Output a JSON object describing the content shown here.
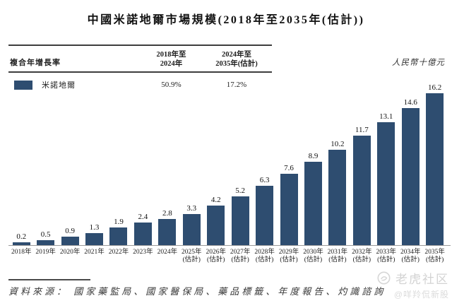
{
  "title": "中國米諾地爾市場規模(2018年至2035年(估計))",
  "unit_label": "人民幣十億元",
  "cagr_table": {
    "row_header": "複合年增長率",
    "columns": [
      [
        "2018年至",
        "2024年"
      ],
      [
        "2024年至",
        "2035年(估計)"
      ]
    ],
    "legend_label": "米諾地爾",
    "legend_color": "#2E4D70",
    "values": [
      "50.9%",
      "17.2%"
    ]
  },
  "chart_data": {
    "type": "bar",
    "title": "中國米諾地爾市場規模(2018年至2035年(估計))",
    "ylabel": "人民幣十億元",
    "categories": [
      "2018年",
      "2019年",
      "2020年",
      "2021年",
      "2022年",
      "2023年",
      "2024年",
      "2025年",
      "2026年",
      "2027年",
      "2028年",
      "2029年",
      "2030年",
      "2031年",
      "2032年",
      "2033年",
      "2034年",
      "2035年"
    ],
    "estimate_note": "(估計)",
    "estimate_from_index": 7,
    "values": [
      0.2,
      0.5,
      0.9,
      1.3,
      1.9,
      2.4,
      2.8,
      3.3,
      4.2,
      5.2,
      6.3,
      7.6,
      8.9,
      10.2,
      11.7,
      13.1,
      14.6,
      16.2
    ],
    "ylim": [
      0,
      16.2
    ],
    "bar_color": "#2E4D70",
    "legend": [
      "米諾地爾"
    ],
    "legend_position": "top-left",
    "grid": false,
    "cagr_annotations": [
      {
        "series": "米諾地爾",
        "period": "2018年至2024年",
        "value": "50.9%"
      },
      {
        "series": "米諾地爾",
        "period": "2024年至2035年(估計)",
        "value": "17.2%"
      }
    ]
  },
  "source": "資料來源： 國家藥監局、國家醫保局、藥品標籤、年度報告、灼識諮詢",
  "watermark": {
    "brand": "老虎社区",
    "handle": "@咩羚侃新股"
  }
}
